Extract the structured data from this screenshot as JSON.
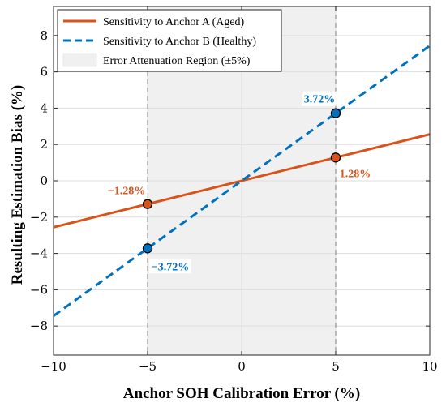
{
  "chart_data": {
    "type": "line",
    "xlabel": "Anchor SOH Calibration Error (%)",
    "ylabel": "Resulting Estimation Bias (%)",
    "xlim": [
      -10,
      10
    ],
    "ylim": [
      -9.6,
      9.6
    ],
    "xticks": [
      -10,
      -5,
      0,
      5,
      10
    ],
    "xtick_labels": [
      "−10",
      "−5",
      "0",
      "5",
      "10"
    ],
    "yticks": [
      -8,
      -6,
      -4,
      -2,
      0,
      2,
      4,
      6,
      8
    ],
    "ytick_labels": [
      "−8",
      "−6",
      "−4",
      "−2",
      "0",
      "2",
      "4",
      "6",
      "8"
    ],
    "grid": true,
    "legend_position": "top-left",
    "series": [
      {
        "name": "Sensitivity to Anchor A (Aged)",
        "color": "#d95319",
        "line_style": "solid",
        "x": [
          -10,
          10
        ],
        "y": [
          -2.56,
          2.56
        ],
        "markers": [
          {
            "x": -5,
            "y": -1.28,
            "label": "−1.28%"
          },
          {
            "x": 5,
            "y": 1.28,
            "label": "1.28%"
          }
        ]
      },
      {
        "name": "Sensitivity to Anchor B (Healthy)",
        "color": "#0072bd",
        "line_style": "dashed",
        "x": [
          -10,
          10
        ],
        "y": [
          -7.44,
          7.44
        ],
        "markers": [
          {
            "x": -5,
            "y": -3.72,
            "label": "−3.72%"
          },
          {
            "x": 5,
            "y": 3.72,
            "label": "3.72%"
          }
        ]
      }
    ],
    "shaded_region": {
      "name": "Error Attenuation Region (±5%)",
      "x_range": [
        -5,
        5
      ],
      "color": "#f0f0f0"
    },
    "vertical_reference_lines": [
      -5,
      5
    ]
  }
}
